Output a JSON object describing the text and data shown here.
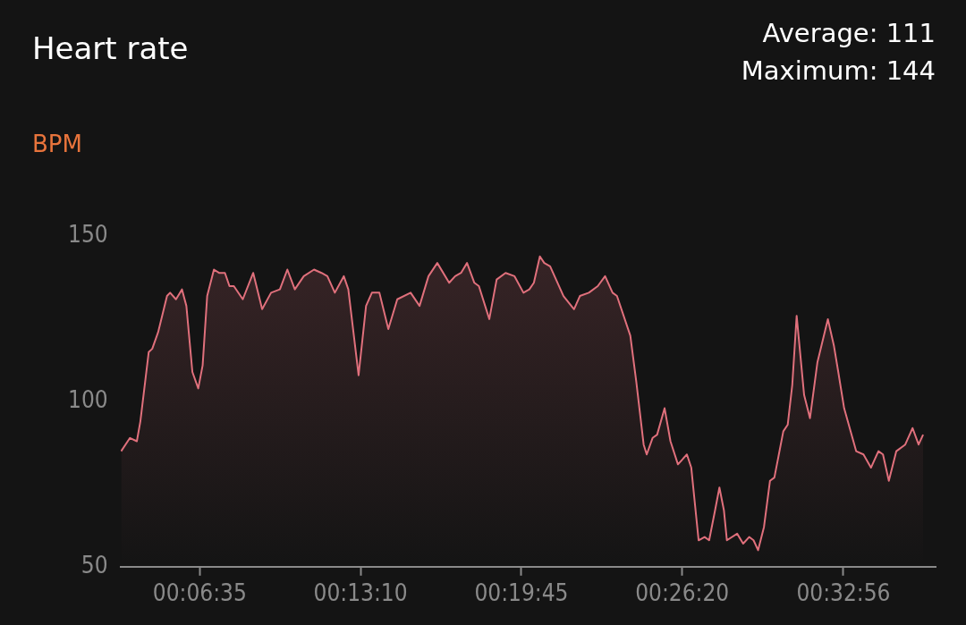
{
  "chart_data": {
    "type": "area",
    "title": "Heart rate",
    "ylabel": "BPM",
    "annotations": [
      "Average: 111",
      "Maximum: 144"
    ],
    "x": [
      0.0561,
      0.0621,
      0.0668,
      0.0692,
      0.0749,
      0.0773,
      0.0813,
      0.0874,
      0.0895,
      0.0935,
      0.0976,
      0.1006,
      0.1047,
      0.1087,
      0.1117,
      0.1148,
      0.1194,
      0.1229,
      0.1269,
      0.13,
      0.133,
      0.1391,
      0.1462,
      0.1523,
      0.1584,
      0.1644,
      0.1695,
      0.1746,
      0.1807,
      0.1877,
      0.1928,
      0.1968,
      0.2019,
      0.208,
      0.2111,
      0.2181,
      0.2232,
      0.2272,
      0.2323,
      0.2384,
      0.2445,
      0.2536,
      0.2597,
      0.2658,
      0.2718,
      0.2799,
      0.284,
      0.288,
      0.2921,
      0.2971,
      0.3002,
      0.3073,
      0.3123,
      0.3184,
      0.3245,
      0.3306,
      0.3346,
      0.3377,
      0.3418,
      0.3448,
      0.3488,
      0.3579,
      0.3651,
      0.3691,
      0.3752,
      0.3813,
      0.3863,
      0.3914,
      0.3944,
      0.4035,
      0.4076,
      0.4126,
      0.4147,
      0.4187,
      0.4218,
      0.4269,
      0.4309,
      0.436,
      0.4421,
      0.4451,
      0.4501,
      0.4542,
      0.4573,
      0.4613,
      0.4643,
      0.4674,
      0.4694,
      0.4764,
      0.4805,
      0.4846,
      0.4876,
      0.4907,
      0.4947,
      0.4988,
      0.5018,
      0.5079,
      0.5109,
      0.514,
      0.517,
      0.5221,
      0.5261,
      0.5312,
      0.5383,
      0.5424,
      0.5454,
      0.5494,
      0.5576,
      0.5626,
      0.5677,
      0.5728,
      0.5759,
      0.5799,
      0.585,
      0.5911,
      0.5961,
      0.6002,
      0.6033
    ],
    "series": [
      {
        "color": "#e0707c",
        "values": [
          85,
          89,
          88,
          94,
          115,
          116,
          121,
          132,
          133,
          131,
          134,
          129,
          109,
          104,
          111,
          132,
          140,
          139,
          139,
          135,
          135,
          131,
          139,
          128,
          133,
          134,
          140,
          134,
          138,
          140,
          139,
          138,
          133,
          138,
          134,
          108,
          129,
          133,
          133,
          122,
          131,
          133,
          129,
          138,
          142,
          136,
          138,
          139,
          142,
          136,
          135,
          125,
          137,
          139,
          138,
          133,
          134,
          136,
          144,
          142,
          141,
          132,
          128,
          132,
          133,
          135,
          138,
          133,
          132,
          120,
          106,
          87,
          84,
          89,
          90,
          98,
          88,
          81,
          84,
          80,
          58,
          59,
          58,
          67,
          74,
          67,
          58,
          60,
          57,
          59,
          58,
          55,
          62,
          76,
          77,
          91,
          93,
          105,
          126,
          102,
          95,
          112,
          125,
          117,
          109,
          98,
          85,
          84,
          80,
          85,
          84,
          76,
          85,
          87,
          92,
          87,
          90
        ]
      }
    ],
    "xlim": [
      0.0556,
      0.6118
    ],
    "xticks": [
      {
        "value": 0.1097,
        "label": "00:06:35"
      },
      {
        "value": 0.2194,
        "label": "00:13:10"
      },
      {
        "value": 0.3292,
        "label": "00:19:45"
      },
      {
        "value": 0.4389,
        "label": "00:26:20"
      },
      {
        "value": 0.5489,
        "label": "00:32:56"
      }
    ],
    "ylim": [
      50,
      150
    ],
    "yticks": [
      50,
      100,
      150
    ],
    "grid": false,
    "legend": false,
    "marker": "none",
    "line_style": "solid"
  }
}
